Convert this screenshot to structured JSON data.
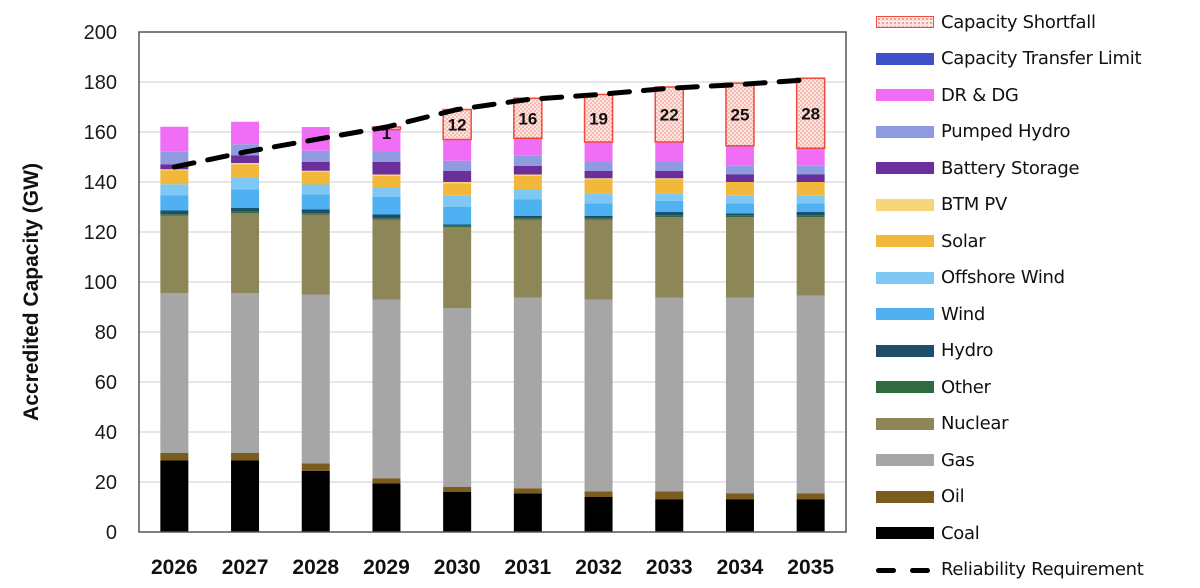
{
  "chart_data": {
    "type": "bar",
    "stacked": true,
    "title": "",
    "xlabel": "",
    "ylabel": "Accredited Capacity (GW)",
    "ylim": [
      0,
      200
    ],
    "yticks": [
      0,
      20,
      40,
      60,
      80,
      100,
      120,
      140,
      160,
      180,
      200
    ],
    "grid": true,
    "legend_position": "right",
    "categories": [
      "2026",
      "2027",
      "2028",
      "2029",
      "2030",
      "2031",
      "2032",
      "2033",
      "2034",
      "2035"
    ],
    "series": [
      {
        "name": "Coal",
        "color": "#000000",
        "values": [
          28.6,
          28.6,
          24.5,
          19.5,
          16,
          15.5,
          14,
          13,
          13,
          13
        ]
      },
      {
        "name": "Oil",
        "color": "#7a5c1e",
        "values": [
          3,
          3,
          3,
          2,
          2,
          2,
          2.3,
          3.3,
          2.5,
          2.5
        ]
      },
      {
        "name": "Gas",
        "color": "#a6a6a6",
        "values": [
          64,
          64,
          67.5,
          71.5,
          71.5,
          76.2,
          76.7,
          77.4,
          78.2,
          79
        ]
      },
      {
        "name": "Nuclear",
        "color": "#8c8658",
        "values": [
          31,
          32,
          32,
          32,
          32.5,
          31.3,
          32,
          32.3,
          32.3,
          31.5
        ]
      },
      {
        "name": "Other",
        "color": "#2e6b3f",
        "values": [
          0.5,
          0.5,
          0.5,
          0.5,
          0.5,
          0.5,
          0.5,
          0.5,
          0.5,
          0.5
        ]
      },
      {
        "name": "Hydro",
        "color": "#1f4e6b",
        "values": [
          1.5,
          1.5,
          1.5,
          1.5,
          0.5,
          1,
          1,
          1.5,
          1,
          1.5
        ]
      },
      {
        "name": "Wind",
        "color": "#4fb1f2",
        "values": [
          6,
          7.5,
          6,
          7,
          7,
          6.5,
          5,
          4.5,
          4,
          3.5
        ]
      },
      {
        "name": "Offshore Wind",
        "color": "#7fc8f5",
        "values": [
          4.5,
          4.5,
          4,
          4,
          4.5,
          4,
          4,
          3,
          3,
          3
        ]
      },
      {
        "name": "Solar",
        "color": "#f2b83c",
        "values": [
          5.5,
          5.5,
          5,
          4.5,
          5,
          5.5,
          5.5,
          5.5,
          5.5,
          5.5
        ]
      },
      {
        "name": "BTM PV",
        "color": "#f7d57a",
        "values": [
          0.5,
          0.5,
          0.5,
          0.5,
          0.5,
          0.5,
          0.5,
          0.5,
          0,
          0
        ]
      },
      {
        "name": "Battery Storage",
        "color": "#6a2f9a",
        "values": [
          2,
          3,
          3.5,
          5,
          4.5,
          3.5,
          3,
          3,
          3,
          3
        ]
      },
      {
        "name": "Pumped Hydro",
        "color": "#8f9be0",
        "values": [
          5,
          4.5,
          4.5,
          4,
          4,
          4,
          3.5,
          3.5,
          3.5,
          3.5
        ]
      },
      {
        "name": "DR & DG",
        "color": "#ef6ef5",
        "values": [
          10,
          9,
          9.5,
          9,
          8.5,
          7,
          8,
          8,
          8,
          7
        ]
      },
      {
        "name": "Capacity Transfer Limit",
        "color": "#3f51c8",
        "values": [
          0,
          0,
          0,
          0,
          0,
          0,
          0,
          0,
          0,
          0
        ]
      },
      {
        "name": "Capacity Shortfall",
        "color": "#f04a3c",
        "pattern": "dotted",
        "values": [
          0,
          0,
          0,
          1,
          12,
          16,
          19,
          22,
          25,
          28
        ]
      }
    ],
    "shortfall_labels": [
      "",
      "",
      "",
      "1",
      "12",
      "16",
      "19",
      "22",
      "25",
      "28"
    ],
    "line_series": {
      "name": "Reliability Requirement",
      "style": "dashed",
      "color": "#000000",
      "values": [
        146,
        152,
        157,
        162,
        169,
        173,
        175,
        177.5,
        179,
        181
      ]
    },
    "legend_entries": [
      {
        "name": "Capacity Shortfall",
        "type": "pattern",
        "color": "#f04a3c"
      },
      {
        "name": "Capacity Transfer Limit",
        "type": "fill",
        "color": "#3f51c8"
      },
      {
        "name": "DR & DG",
        "type": "fill",
        "color": "#ef6ef5"
      },
      {
        "name": "Pumped Hydro",
        "type": "fill",
        "color": "#8f9be0"
      },
      {
        "name": "Battery Storage",
        "type": "fill",
        "color": "#6a2f9a"
      },
      {
        "name": "BTM PV",
        "type": "fill",
        "color": "#f7d57a"
      },
      {
        "name": "Solar",
        "type": "fill",
        "color": "#f2b83c"
      },
      {
        "name": "Offshore Wind",
        "type": "fill",
        "color": "#7fc8f5"
      },
      {
        "name": "Wind",
        "type": "fill",
        "color": "#4fb1f2"
      },
      {
        "name": "Hydro",
        "type": "fill",
        "color": "#1f4e6b"
      },
      {
        "name": "Other",
        "type": "fill",
        "color": "#2e6b3f"
      },
      {
        "name": "Nuclear",
        "type": "fill",
        "color": "#8c8658"
      },
      {
        "name": "Gas",
        "type": "fill",
        "color": "#a6a6a6"
      },
      {
        "name": "Oil",
        "type": "fill",
        "color": "#7a5c1e"
      },
      {
        "name": "Coal",
        "type": "fill",
        "color": "#000000"
      },
      {
        "name": "Reliability Requirement",
        "type": "dash",
        "color": "#000000"
      }
    ]
  }
}
